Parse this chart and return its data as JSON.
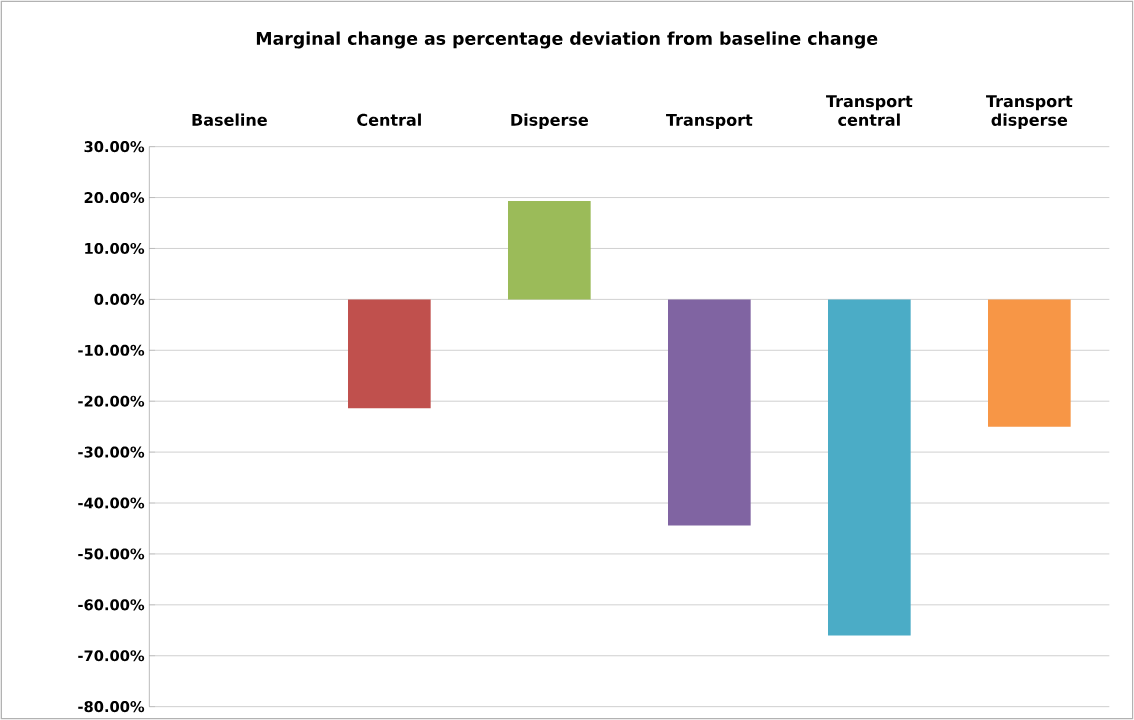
{
  "chart_data": {
    "type": "bar",
    "title": "Marginal change as percentage deviation from baseline change",
    "categories": [
      "Baseline",
      "Central",
      "Disperse",
      "Transport",
      "Transport central",
      "Transport disperse"
    ],
    "values": [
      0,
      -21.4,
      19.3,
      -44.4,
      -66.0,
      -25.0
    ],
    "colors": [
      "#4f81bd",
      "#c0504d",
      "#9bbb59",
      "#8064a2",
      "#4bacc6",
      "#f79646"
    ],
    "ylim": [
      -80,
      30
    ],
    "yticks": [
      {
        "value": 30,
        "label": "30.00%"
      },
      {
        "value": 20,
        "label": "20.00%"
      },
      {
        "value": 10,
        "label": "10.00%"
      },
      {
        "value": 0,
        "label": "0.00%"
      },
      {
        "value": -10,
        "label": "-10.00%"
      },
      {
        "value": -20,
        "label": "-20.00%"
      },
      {
        "value": -30,
        "label": "-30.00%"
      },
      {
        "value": -40,
        "label": "-40.00%"
      },
      {
        "value": -50,
        "label": "-50.00%"
      },
      {
        "value": -60,
        "label": "-60.00%"
      },
      {
        "value": -70,
        "label": "-70.00%"
      },
      {
        "value": -80,
        "label": "-80.00%"
      }
    ],
    "grid": "y"
  }
}
